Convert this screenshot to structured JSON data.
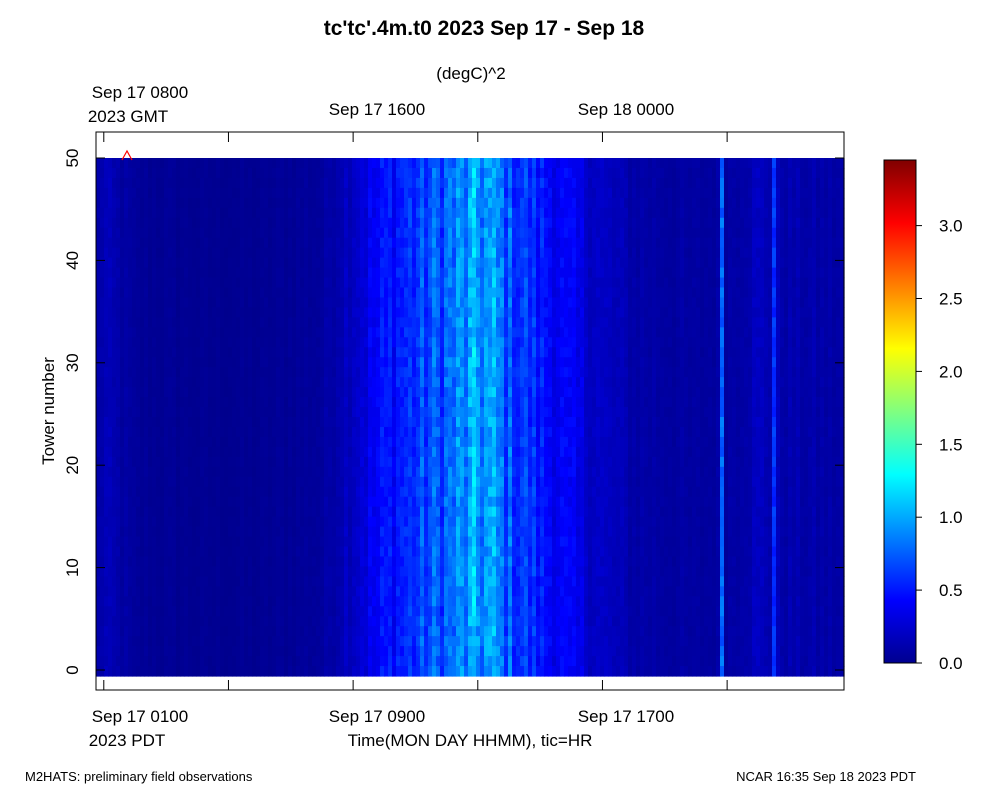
{
  "chart_data": {
    "type": "heatmap",
    "title": "tc'tc'.4m.t0 2023 Sep 17 - Sep 18",
    "colorbar_label": "(degC)^2",
    "ylabel": "Tower number",
    "xlabel": "Time(MON DAY HHMM), tic=HR",
    "ylim": [
      0,
      50
    ],
    "y_ticks": [
      "0",
      "10",
      "20",
      "30",
      "40",
      "50"
    ],
    "x_range_hours_pdt": [
      0.75,
      24.75
    ],
    "top_axis_labels": [
      {
        "line1": "Sep 17 0800",
        "line2": "2023 GMT"
      },
      {
        "line1": "Sep 17 1600",
        "line2": ""
      },
      {
        "line1": "Sep 18 0000",
        "line2": ""
      }
    ],
    "bottom_axis_labels": [
      {
        "line1": "Sep 17 0100",
        "line2": "2023 PDT"
      },
      {
        "line1": "Sep 17 0900",
        "line2": ""
      },
      {
        "line1": "Sep 17 1700",
        "line2": ""
      }
    ],
    "colorbar": {
      "range": [
        0,
        3.45
      ],
      "ticks": [
        "0.0",
        "0.5",
        "1.0",
        "1.5",
        "2.0",
        "2.5",
        "3.0"
      ],
      "colormap": "jet"
    },
    "variance_profile_by_hour_pdt": [
      {
        "hour": 0.75,
        "value": 0.12
      },
      {
        "hour": 1.0,
        "value": 0.18
      },
      {
        "hour": 2.0,
        "value": 0.08
      },
      {
        "hour": 4.0,
        "value": 0.06
      },
      {
        "hour": 6.0,
        "value": 0.06
      },
      {
        "hour": 8.0,
        "value": 0.1
      },
      {
        "hour": 9.0,
        "value": 0.25
      },
      {
        "hour": 10.0,
        "value": 0.45
      },
      {
        "hour": 11.0,
        "value": 0.6
      },
      {
        "hour": 12.0,
        "value": 0.75
      },
      {
        "hour": 13.0,
        "value": 0.95
      },
      {
        "hour": 13.5,
        "value": 0.9
      },
      {
        "hour": 14.0,
        "value": 0.7
      },
      {
        "hour": 15.0,
        "value": 0.5
      },
      {
        "hour": 16.0,
        "value": 0.35
      },
      {
        "hour": 17.0,
        "value": 0.22
      },
      {
        "hour": 18.0,
        "value": 0.14
      },
      {
        "hour": 20.0,
        "value": 0.1
      },
      {
        "hour": 21.0,
        "value": 0.12
      },
      {
        "hour": 22.0,
        "value": 0.2
      },
      {
        "hour": 23.0,
        "value": 0.15
      },
      {
        "hour": 24.75,
        "value": 0.12
      }
    ],
    "spikes_by_hour_pdt": [
      {
        "hour": 20.85,
        "value": 0.85
      },
      {
        "hour": 22.5,
        "value": 0.6
      }
    ]
  },
  "footer": {
    "left": "M2HATS: preliminary field observations",
    "right": "NCAR 16:35 Sep 18 2023 PDT"
  }
}
